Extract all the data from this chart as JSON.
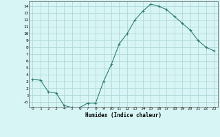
{
  "x": [
    0,
    1,
    2,
    3,
    4,
    5,
    6,
    7,
    8,
    9,
    10,
    11,
    12,
    13,
    14,
    15,
    16,
    17,
    18,
    19,
    20,
    21,
    22,
    23
  ],
  "y": [
    3.3,
    3.2,
    1.5,
    1.3,
    -0.5,
    -0.8,
    -0.8,
    -0.15,
    -0.15,
    3.0,
    5.5,
    8.5,
    10.0,
    12.0,
    13.3,
    14.3,
    14.0,
    13.5,
    12.5,
    11.5,
    10.5,
    9.0,
    8.0,
    7.5
  ],
  "xlabel": "Humidex (Indice chaleur)",
  "line_color": "#2e7d6e",
  "bg_color": "#d8f5f5",
  "grid_color": "#b0d8d8",
  "ylim": [
    -0.7,
    14.7
  ],
  "xlim": [
    -0.5,
    23.5
  ],
  "yticks": [
    0,
    1,
    2,
    3,
    4,
    5,
    6,
    7,
    8,
    9,
    10,
    11,
    12,
    13,
    14
  ],
  "xticks": [
    0,
    1,
    2,
    3,
    4,
    5,
    6,
    7,
    8,
    9,
    10,
    11,
    12,
    13,
    14,
    15,
    16,
    17,
    18,
    19,
    20,
    21,
    22,
    23
  ]
}
